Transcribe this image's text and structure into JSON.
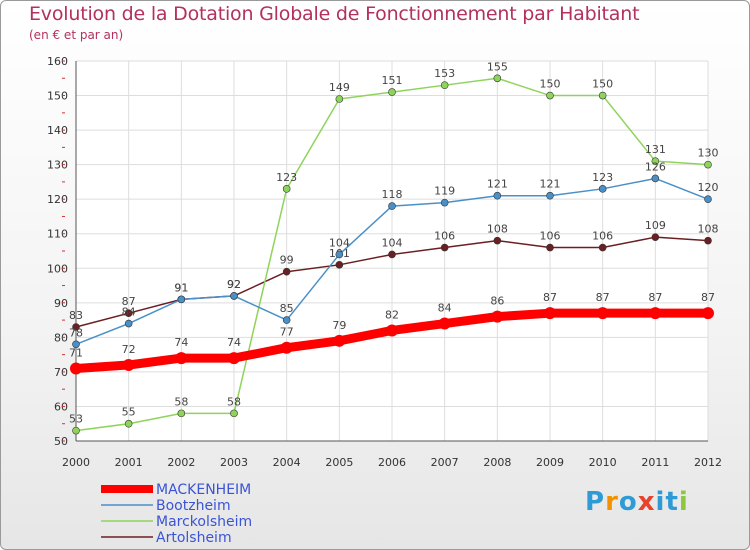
{
  "chart_data": {
    "type": "line",
    "title": "Evolution de la Dotation Globale de Fonctionnement par Habitant",
    "subtitle": "(en € et par an)",
    "x": [
      "2000",
      "2001",
      "2002",
      "2003",
      "2004",
      "2005",
      "2006",
      "2007",
      "2008",
      "2009",
      "2010",
      "2011",
      "2012"
    ],
    "ylim": [
      50,
      160
    ],
    "yticks": [
      50,
      60,
      70,
      80,
      90,
      100,
      110,
      120,
      130,
      140,
      150,
      160
    ],
    "grid": true,
    "legend_position": "bottom-left",
    "series": [
      {
        "name": "Artolsheim",
        "color": "#6b1f22",
        "values": [
          83,
          87,
          91,
          92,
          99,
          101,
          104,
          106,
          108,
          106,
          106,
          109,
          108
        ]
      },
      {
        "name": "Marckolsheim",
        "color": "#8fd45a",
        "values": [
          53,
          55,
          58,
          58,
          123,
          149,
          151,
          153,
          155,
          150,
          150,
          131,
          130
        ]
      },
      {
        "name": "Bootzheim",
        "color": "#4a90c8",
        "values": [
          78,
          84,
          91,
          92,
          85,
          104,
          118,
          119,
          121,
          121,
          123,
          126,
          120
        ]
      },
      {
        "name": "MACKENHEIM",
        "color": "#ff0000",
        "values": [
          71,
          72,
          74,
          74,
          77,
          79,
          82,
          84,
          86,
          87,
          87,
          87,
          87
        ]
      }
    ],
    "legend": [
      "MACKENHEIM",
      "Bootzheim",
      "Marckolsheim",
      "Artolsheim"
    ]
  },
  "logo": {
    "text": "Proxiti",
    "letters": [
      "P",
      "r",
      "o",
      "x",
      "i",
      "t",
      "i"
    ],
    "colors": [
      "#2e9bd6",
      "#f39200",
      "#2e9bd6",
      "#e8412c",
      "#2e9bd6",
      "#2e9bd6",
      "#8dc63f"
    ]
  }
}
